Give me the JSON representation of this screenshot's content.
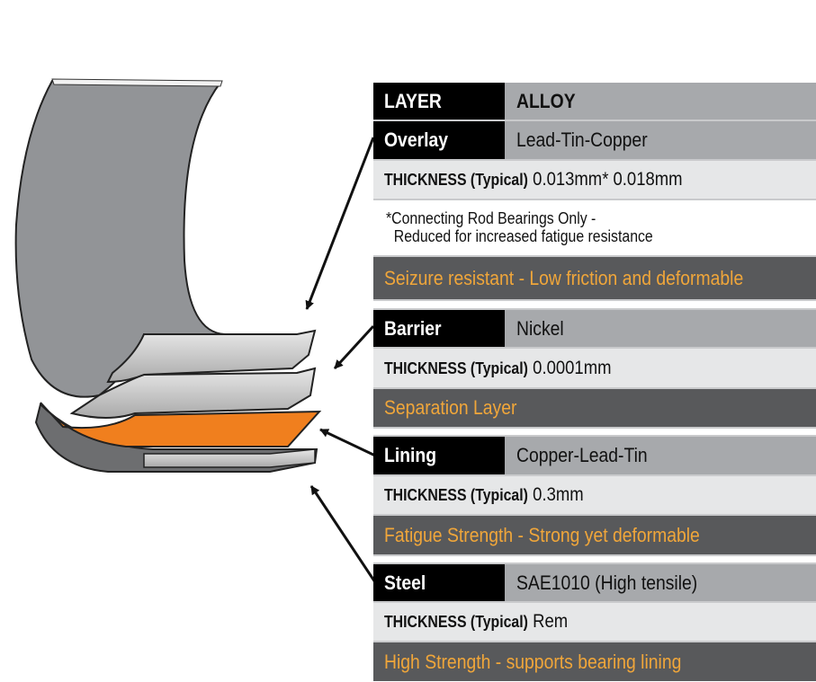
{
  "header": {
    "layer_label": "LAYER",
    "alloy_label": "ALLOY"
  },
  "thickness_label": "THICKNESS (Typical)",
  "layers": [
    {
      "name": "Overlay",
      "alloy": "Lead-Tin-Copper",
      "thickness": "0.013mm* 0.018mm",
      "note_line1": "*Connecting Rod Bearings Only -",
      "note_line2": "Reduced for increased fatigue resistance",
      "description": "Seizure resistant - Low friction and deformable"
    },
    {
      "name": "Barrier",
      "alloy": "Nickel",
      "thickness": "0.0001mm",
      "description": "Separation Layer"
    },
    {
      "name": "Lining",
      "alloy": "Copper-Lead-Tin",
      "thickness": "0.3mm",
      "description": "Fatigue Strength - Strong yet deformable"
    },
    {
      "name": "Steel",
      "alloy": "SAE1010 (High tensile)",
      "thickness": "Rem",
      "description": "High Strength - supports bearing lining"
    }
  ],
  "colors": {
    "label_bg": "#000000",
    "alloy_bg": "#a7a9ac",
    "thickness_bg": "#e6e7e8",
    "description_bg": "#58595b",
    "description_text": "#f0a63a",
    "lining_orange": "#f07f1e",
    "shell_gray": "#929497"
  }
}
